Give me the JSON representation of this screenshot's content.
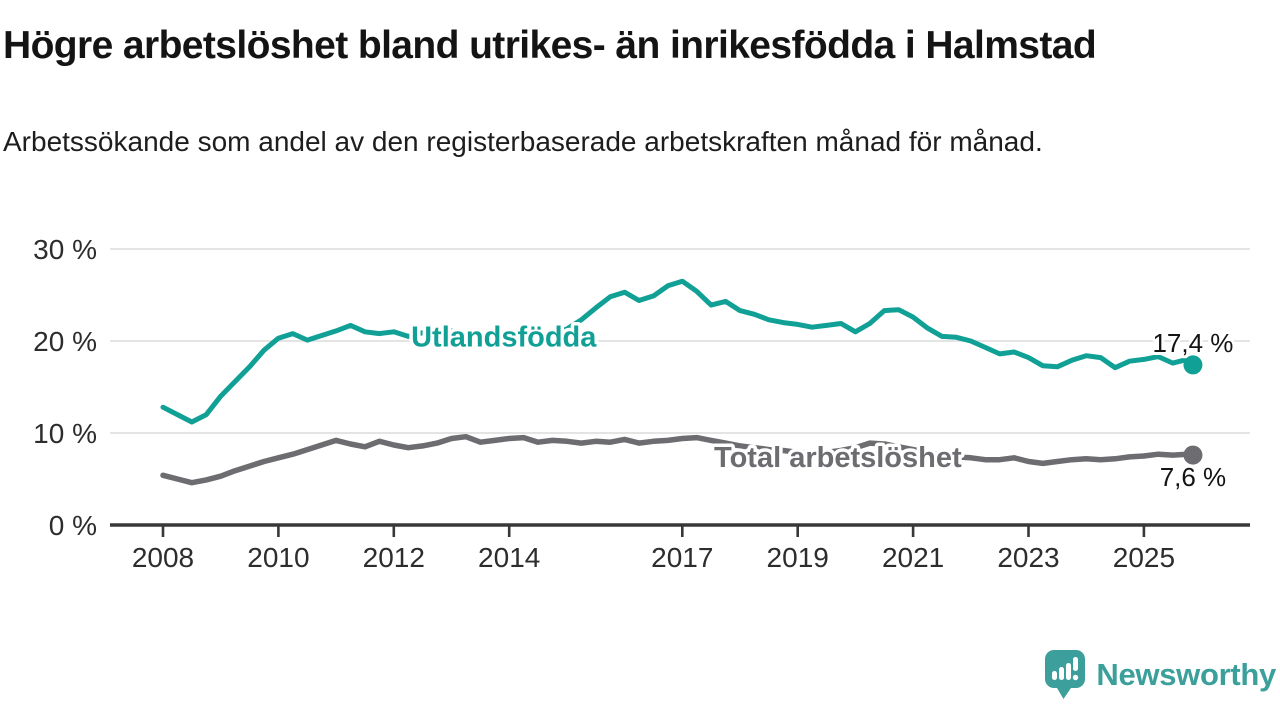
{
  "header": {
    "title": "Högre arbetslöshet bland utrikes- än inrikesfödda i Halmstad",
    "subtitle": "Arbetssökande som andel av den registerbaserade arbetskraften månad för månad."
  },
  "colors": {
    "series_foreign_born": "#10a095",
    "series_total": "#6d6d71",
    "axis_line": "#383838",
    "gridline": "#dcdcdc",
    "tick_text": "#2d2d2d",
    "annotation_text": "#141414",
    "brand_teal": "#3ba09a"
  },
  "chart_data": {
    "type": "line",
    "unit": "%",
    "ylim": [
      0,
      30
    ],
    "xlim": [
      2008,
      2025.85
    ],
    "grid": "horizontal",
    "legend_position": "inline-labels",
    "y_ticks": [
      {
        "value": 0,
        "label": "0 %"
      },
      {
        "value": 10,
        "label": "10 %"
      },
      {
        "value": 20,
        "label": "20 %"
      },
      {
        "value": 30,
        "label": "30 %"
      }
    ],
    "x_ticks": [
      {
        "value": 2008,
        "label": "2008"
      },
      {
        "value": 2010,
        "label": "2010"
      },
      {
        "value": 2012,
        "label": "2012"
      },
      {
        "value": 2014,
        "label": "2014"
      },
      {
        "value": 2017,
        "label": "2017"
      },
      {
        "value": 2019,
        "label": "2019"
      },
      {
        "value": 2021,
        "label": "2021"
      },
      {
        "value": 2023,
        "label": "2023"
      },
      {
        "value": 2025,
        "label": "2025"
      }
    ],
    "x": [
      2008,
      2008.25,
      2008.5,
      2008.75,
      2009,
      2009.25,
      2009.5,
      2009.75,
      2010,
      2010.25,
      2010.5,
      2010.75,
      2011,
      2011.25,
      2011.5,
      2011.75,
      2012,
      2012.25,
      2012.5,
      2012.75,
      2013,
      2013.25,
      2013.5,
      2013.75,
      2014,
      2014.25,
      2014.5,
      2014.75,
      2015,
      2015.25,
      2015.5,
      2015.75,
      2016,
      2016.25,
      2016.5,
      2016.75,
      2017,
      2017.25,
      2017.5,
      2017.75,
      2018,
      2018.25,
      2018.5,
      2018.75,
      2019,
      2019.25,
      2019.5,
      2019.75,
      2020,
      2020.25,
      2020.5,
      2020.75,
      2021,
      2021.25,
      2021.5,
      2021.75,
      2022,
      2022.25,
      2022.5,
      2022.75,
      2023,
      2023.25,
      2023.5,
      2023.75,
      2024,
      2024.25,
      2024.5,
      2024.75,
      2025,
      2025.25,
      2025.5,
      2025.75,
      2025.85
    ],
    "series": [
      {
        "name": "Utlandsfödda",
        "color": "#10a095",
        "end_label": "17,4 %",
        "end_value": 17.4,
        "label_anchor": {
          "x": 2012.3,
          "value": 20.5
        },
        "values": [
          12.8,
          12.0,
          11.2,
          12.0,
          14.0,
          15.6,
          17.2,
          19.0,
          20.3,
          20.8,
          20.1,
          20.6,
          21.1,
          21.7,
          21.0,
          20.8,
          21.0,
          20.5,
          20.9,
          21.4,
          21.1,
          20.3,
          19.8,
          20.5,
          20.2,
          19.7,
          20.2,
          20.8,
          21.3,
          22.3,
          23.6,
          24.8,
          25.3,
          24.4,
          24.9,
          26.0,
          26.5,
          25.4,
          23.9,
          24.3,
          23.3,
          22.9,
          22.3,
          22.0,
          21.8,
          21.5,
          21.7,
          21.9,
          21.0,
          21.9,
          23.3,
          23.4,
          22.6,
          21.4,
          20.5,
          20.4,
          20.0,
          19.3,
          18.6,
          18.8,
          18.2,
          17.3,
          17.2,
          17.9,
          18.4,
          18.2,
          17.1,
          17.8,
          18.0,
          18.3,
          17.6,
          18.0,
          17.4
        ]
      },
      {
        "name": "Total arbetslöshet",
        "color": "#6d6d71",
        "end_label": "7,6 %",
        "end_value": 7.6,
        "label_anchor": {
          "x": 2017.55,
          "value": 7.4
        },
        "values": [
          5.4,
          5.0,
          4.6,
          4.9,
          5.3,
          5.9,
          6.4,
          6.9,
          7.3,
          7.7,
          8.2,
          8.7,
          9.2,
          8.8,
          8.5,
          9.1,
          8.7,
          8.4,
          8.6,
          8.9,
          9.4,
          9.6,
          9.0,
          9.2,
          9.4,
          9.5,
          9.0,
          9.2,
          9.1,
          8.9,
          9.1,
          9.0,
          9.3,
          8.9,
          9.1,
          9.2,
          9.4,
          9.5,
          9.2,
          8.9,
          8.6,
          8.4,
          8.2,
          8.1,
          7.9,
          7.8,
          7.9,
          8.1,
          8.4,
          8.9,
          8.8,
          8.5,
          8.2,
          7.9,
          7.6,
          7.4,
          7.3,
          7.1,
          7.1,
          7.3,
          6.9,
          6.7,
          6.9,
          7.1,
          7.2,
          7.1,
          7.2,
          7.4,
          7.5,
          7.7,
          7.6,
          7.7,
          7.6
        ]
      }
    ]
  },
  "branding": {
    "name": "Newsworthy"
  }
}
